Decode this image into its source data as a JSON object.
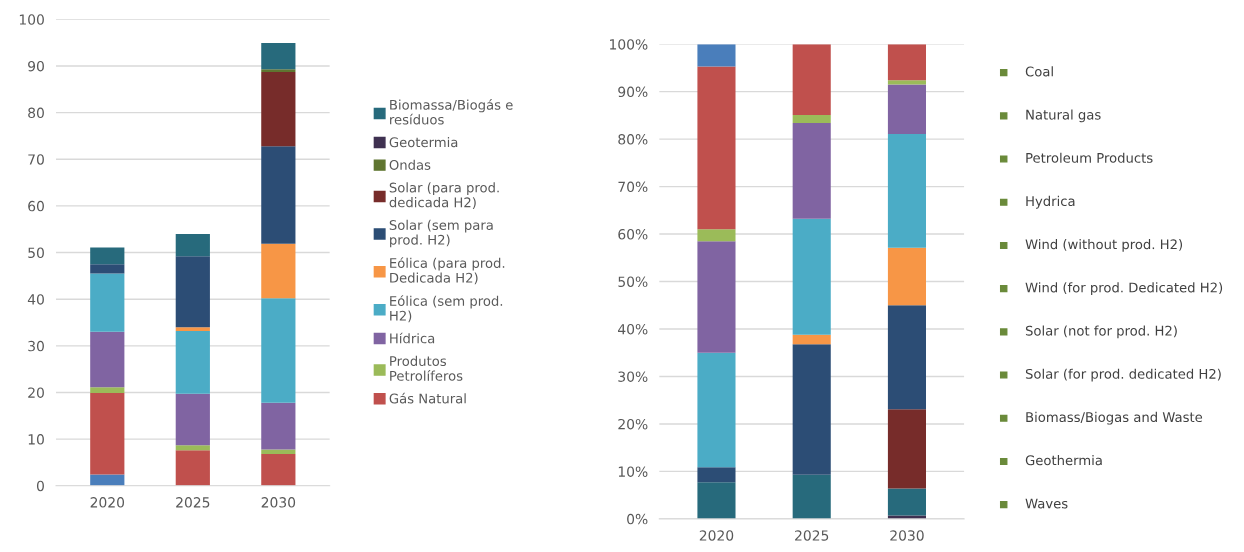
{
  "chart_data": [
    {
      "type": "bar",
      "stacked": true,
      "categories": [
        "2020",
        "2025",
        "2030"
      ],
      "ylim": [
        0,
        100
      ],
      "yticks": [
        0,
        10,
        20,
        30,
        40,
        50,
        60,
        70,
        80,
        90,
        100
      ],
      "grid": "y",
      "legend": "right",
      "series": [
        {
          "color": "#4a7ebb",
          "values": [
            2.4,
            0,
            0
          ]
        },
        {
          "name": "Gás Natural",
          "color": "#c0504d",
          "values": [
            17.5,
            7.6,
            6.8
          ]
        },
        {
          "name": "Produtos\nPetrolíferos",
          "color": "#9bbb59",
          "values": [
            1.2,
            1.1,
            1.0
          ]
        },
        {
          "name": "Hídrica",
          "color": "#8064a2",
          "values": [
            11.9,
            11.0,
            10.0
          ]
        },
        {
          "name": "Eólica (sem prod.\nH2)",
          "color": "#4bacc6",
          "values": [
            12.5,
            13.5,
            22.4
          ]
        },
        {
          "name": "Eólica (para prod.\nDedicada H2)",
          "color": "#f79646",
          "values": [
            0,
            0.8,
            11.7
          ]
        },
        {
          "name": "Solar (sem para\nprod. H2)",
          "color": "#2c4d75",
          "values": [
            2.0,
            15.2,
            20.9
          ]
        },
        {
          "name": "Solar (para prod.\ndedicada H2)",
          "color": "#772c2a",
          "values": [
            0,
            0,
            15.9
          ]
        },
        {
          "name": "Ondas",
          "color": "#5f7530",
          "values": [
            0,
            0,
            0.6
          ]
        },
        {
          "name": "Geotermia",
          "color": "#3f3151",
          "values": [
            0,
            0,
            0
          ]
        },
        {
          "name": "Biomassa/Biogás e\nresíduos",
          "color": "#276a7c",
          "values": [
            3.6,
            4.8,
            5.6
          ]
        }
      ]
    },
    {
      "type": "bar",
      "stacked": true,
      "categories": [
        "2020",
        "2025",
        "2030"
      ],
      "ylim": [
        0,
        100
      ],
      "grid": "y",
      "yticks": [
        {
          "value": 0,
          "label": "0%"
        },
        {
          "value": 10,
          "label": "10%"
        },
        {
          "value": 20,
          "label": "20%"
        },
        {
          "value": 30,
          "label": "30%"
        },
        {
          "value": 40,
          "label": "40%"
        },
        {
          "value": 50,
          "label": "50%"
        },
        {
          "value": 60,
          "label": "60%"
        },
        {
          "value": 70,
          "label": "70%"
        },
        {
          "value": 80,
          "label": "80%"
        },
        {
          "value": 90,
          "label": "90%"
        },
        {
          "value": 100,
          "label": "100%"
        }
      ],
      "series": [
        {
          "color": "#5f7530",
          "values": [
            0,
            0,
            0
          ]
        },
        {
          "color": "#3f3151",
          "values": [
            0,
            0,
            0.7
          ]
        },
        {
          "color": "#276a7c",
          "values": [
            7.7,
            9.3,
            5.7
          ]
        },
        {
          "color": "#772c2a",
          "values": [
            0,
            0,
            16.7
          ]
        },
        {
          "color": "#2c4d75",
          "values": [
            3.2,
            27.5,
            21.9
          ]
        },
        {
          "color": "#f79646",
          "values": [
            0,
            2.0,
            12.1
          ]
        },
        {
          "color": "#4bacc6",
          "values": [
            24.1,
            24.4,
            24.0
          ]
        },
        {
          "color": "#8064a2",
          "values": [
            23.5,
            20.2,
            10.4
          ]
        },
        {
          "color": "#9bbb59",
          "values": [
            2.5,
            1.7,
            0.9
          ]
        },
        {
          "color": "#c0504d",
          "values": [
            34.3,
            14.9,
            7.6
          ]
        },
        {
          "color": "#4a7ebb",
          "values": [
            4.7,
            0,
            0
          ]
        }
      ],
      "annotations": [
        "Coal",
        "Natural gas",
        "Petroleum Products",
        "Hydrica",
        "Wind (without prod. H2)",
        "Wind (for prod. Dedicated H2)",
        "Solar (not for prod. H2)",
        "Solar (for prod. dedicated H2)",
        "Biomass/Biogas and Waste",
        "Geothermia",
        "Waves"
      ]
    }
  ]
}
